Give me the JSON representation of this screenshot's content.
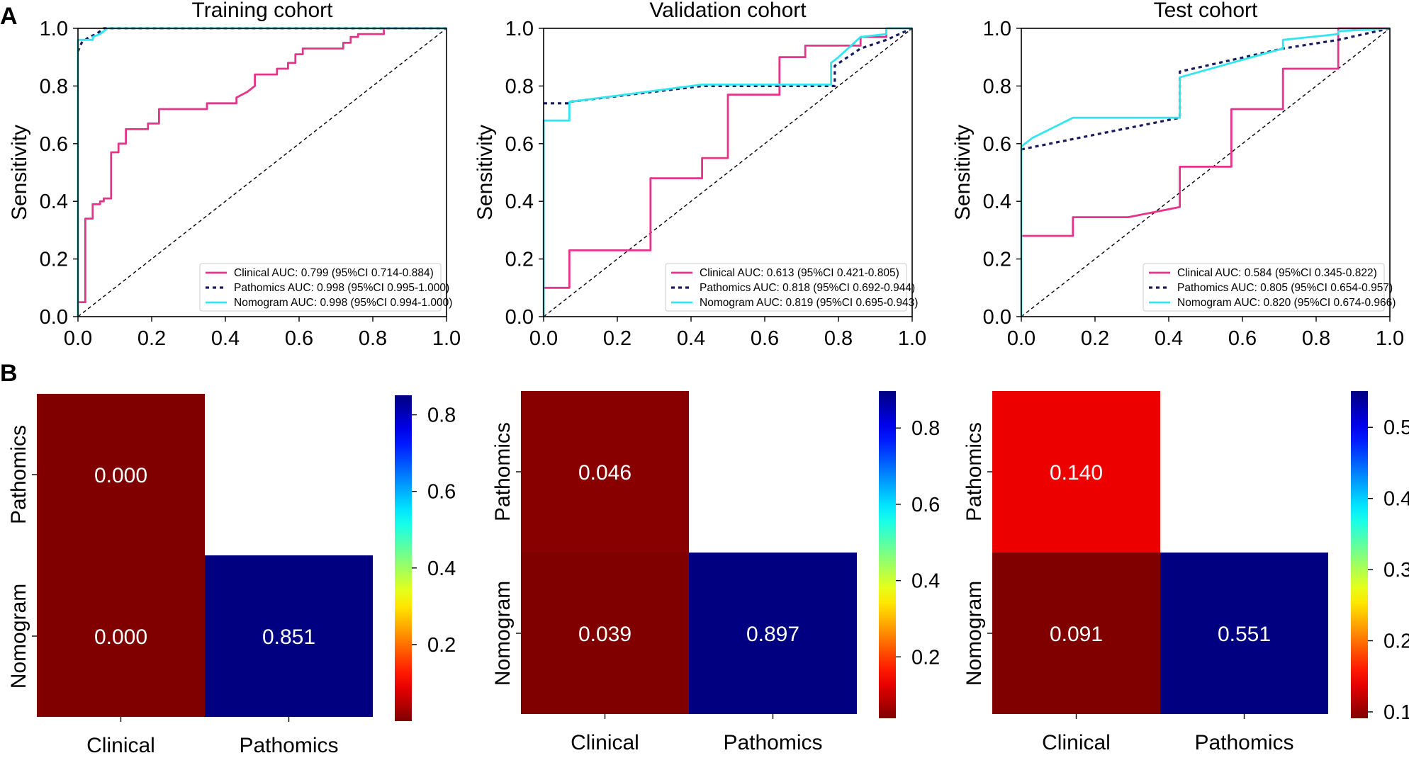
{
  "panel_labels": [
    "A",
    "B"
  ],
  "chart_data": [
    {
      "type": "line",
      "kind": "roc",
      "title": "Training cohort",
      "xlabel": "",
      "ylabel": "Sensitivity",
      "xlim": [
        0,
        1
      ],
      "ylim": [
        0,
        1
      ],
      "xticks": [
        "0.0",
        "0.2",
        "0.4",
        "0.6",
        "0.8",
        "1.0"
      ],
      "yticks": [
        "0.0",
        "0.2",
        "0.4",
        "0.6",
        "0.8",
        "1.0"
      ],
      "legend_position": "lower-right",
      "series": [
        {
          "name": "Clinical",
          "label": "Clinical AUC: 0.799 (95%CI 0.714-0.884)",
          "color": "#e5358a",
          "style": "solid",
          "points": [
            [
              0,
              0
            ],
            [
              0,
              0.05
            ],
            [
              0.02,
              0.05
            ],
            [
              0.02,
              0.34
            ],
            [
              0.04,
              0.34
            ],
            [
              0.04,
              0.39
            ],
            [
              0.06,
              0.39
            ],
            [
              0.06,
              0.4
            ],
            [
              0.07,
              0.4
            ],
            [
              0.07,
              0.41
            ],
            [
              0.09,
              0.41
            ],
            [
              0.09,
              0.57
            ],
            [
              0.11,
              0.57
            ],
            [
              0.11,
              0.6
            ],
            [
              0.13,
              0.6
            ],
            [
              0.13,
              0.65
            ],
            [
              0.19,
              0.65
            ],
            [
              0.19,
              0.67
            ],
            [
              0.22,
              0.67
            ],
            [
              0.22,
              0.72
            ],
            [
              0.35,
              0.72
            ],
            [
              0.35,
              0.74
            ],
            [
              0.43,
              0.74
            ],
            [
              0.43,
              0.76
            ],
            [
              0.46,
              0.78
            ],
            [
              0.48,
              0.8
            ],
            [
              0.48,
              0.84
            ],
            [
              0.54,
              0.84
            ],
            [
              0.54,
              0.86
            ],
            [
              0.57,
              0.86
            ],
            [
              0.57,
              0.88
            ],
            [
              0.59,
              0.88
            ],
            [
              0.59,
              0.91
            ],
            [
              0.61,
              0.91
            ],
            [
              0.61,
              0.93
            ],
            [
              0.72,
              0.93
            ],
            [
              0.72,
              0.95
            ],
            [
              0.74,
              0.95
            ],
            [
              0.74,
              0.97
            ],
            [
              0.76,
              0.97
            ],
            [
              0.76,
              0.98
            ],
            [
              0.83,
              0.98
            ],
            [
              0.83,
              1.0
            ],
            [
              1.0,
              1.0
            ]
          ]
        },
        {
          "name": "Pathomics",
          "label": "Pathomics AUC: 0.998 (95%CI 0.995-1.000)",
          "color": "#1a1a5e",
          "style": "dotted",
          "points": [
            [
              0,
              0.92
            ],
            [
              0.01,
              0.95
            ],
            [
              0.03,
              0.97
            ],
            [
              0.05,
              0.98
            ],
            [
              0.07,
              1.0
            ],
            [
              1.0,
              1.0
            ]
          ]
        },
        {
          "name": "Nomogram",
          "label": "Nomogram AUC: 0.998 (95%CI 0.994-1.000)",
          "color": "#32e6f0",
          "style": "solid",
          "points": [
            [
              0,
              0
            ],
            [
              0,
              0.96
            ],
            [
              0.04,
              0.96
            ],
            [
              0.04,
              0.97
            ],
            [
              0.06,
              0.98
            ],
            [
              0.08,
              1.0
            ],
            [
              1.0,
              1.0
            ]
          ]
        }
      ]
    },
    {
      "type": "line",
      "kind": "roc",
      "title": "Validation cohort",
      "xlabel": "",
      "ylabel": "Sensitivity",
      "xlim": [
        0,
        1
      ],
      "ylim": [
        0,
        1
      ],
      "xticks": [
        "0.0",
        "0.2",
        "0.4",
        "0.6",
        "0.8",
        "1.0"
      ],
      "yticks": [
        "0.0",
        "0.2",
        "0.4",
        "0.6",
        "0.8",
        "1.0"
      ],
      "legend_position": "lower-right",
      "series": [
        {
          "name": "Clinical",
          "label": "Clinical AUC: 0.613 (95%CI 0.421-0.805)",
          "color": "#e5358a",
          "style": "solid",
          "points": [
            [
              0,
              0.1
            ],
            [
              0.07,
              0.1
            ],
            [
              0.07,
              0.23
            ],
            [
              0.29,
              0.23
            ],
            [
              0.29,
              0.48
            ],
            [
              0.43,
              0.48
            ],
            [
              0.43,
              0.55
            ],
            [
              0.5,
              0.55
            ],
            [
              0.5,
              0.77
            ],
            [
              0.64,
              0.77
            ],
            [
              0.64,
              0.9
            ],
            [
              0.71,
              0.9
            ],
            [
              0.71,
              0.94
            ],
            [
              0.86,
              0.94
            ],
            [
              0.86,
              0.97
            ],
            [
              0.93,
              0.97
            ],
            [
              0.93,
              1.0
            ],
            [
              1.0,
              1.0
            ]
          ]
        },
        {
          "name": "Pathomics",
          "label": "Pathomics AUC: 0.818 (95%CI 0.692-0.944)",
          "color": "#1a1a5e",
          "style": "dotted",
          "points": [
            [
              0,
              0.74
            ],
            [
              0.07,
              0.74
            ],
            [
              0.07,
              0.745
            ],
            [
              0.43,
              0.8
            ],
            [
              0.79,
              0.8
            ],
            [
              0.79,
              0.87
            ],
            [
              0.86,
              0.93
            ],
            [
              0.93,
              0.96
            ],
            [
              1.0,
              1.0
            ]
          ]
        },
        {
          "name": "Nomogram",
          "label": "Nomogram AUC: 0.819 (95%CI 0.695-0.943)",
          "color": "#32e6f0",
          "style": "solid",
          "points": [
            [
              0,
              0
            ],
            [
              0,
              0.68
            ],
            [
              0.07,
              0.68
            ],
            [
              0.07,
              0.745
            ],
            [
              0.43,
              0.805
            ],
            [
              0.78,
              0.805
            ],
            [
              0.78,
              0.88
            ],
            [
              0.8,
              0.9
            ],
            [
              0.86,
              0.97
            ],
            [
              0.93,
              0.98
            ],
            [
              0.93,
              1.0
            ],
            [
              1.0,
              1.0
            ]
          ]
        }
      ]
    },
    {
      "type": "line",
      "kind": "roc",
      "title": "Test cohort",
      "xlabel": "",
      "ylabel": "Sensitivity",
      "xlim": [
        0,
        1
      ],
      "ylim": [
        0,
        1
      ],
      "xticks": [
        "0.0",
        "0.2",
        "0.4",
        "0.6",
        "0.8",
        "1.0"
      ],
      "yticks": [
        "0.0",
        "0.2",
        "0.4",
        "0.6",
        "0.8",
        "1.0"
      ],
      "legend_position": "lower-right",
      "series": [
        {
          "name": "Clinical",
          "label": "Clinical AUC: 0.584 (95%CI 0.345-0.822)",
          "color": "#e5358a",
          "style": "solid",
          "points": [
            [
              0,
              0.28
            ],
            [
              0.14,
              0.28
            ],
            [
              0.14,
              0.345
            ],
            [
              0.29,
              0.345
            ],
            [
              0.43,
              0.38
            ],
            [
              0.43,
              0.52
            ],
            [
              0.57,
              0.52
            ],
            [
              0.57,
              0.72
            ],
            [
              0.71,
              0.72
            ],
            [
              0.71,
              0.86
            ],
            [
              0.86,
              0.86
            ],
            [
              0.86,
              1.0
            ],
            [
              1.0,
              1.0
            ]
          ]
        },
        {
          "name": "Pathomics",
          "label": "Pathomics AUC: 0.805 (95%CI 0.654-0.957)",
          "color": "#1a1a5e",
          "style": "dotted",
          "points": [
            [
              0,
              0.58
            ],
            [
              0.43,
              0.69
            ],
            [
              0.43,
              0.85
            ],
            [
              0.71,
              0.93
            ],
            [
              0.86,
              0.96
            ],
            [
              1.0,
              1.0
            ]
          ]
        },
        {
          "name": "Nomogram",
          "label": "Nomogram AUC: 0.820 (95%CI 0.674-0.966)",
          "color": "#32e6f0",
          "style": "solid",
          "points": [
            [
              0,
              0
            ],
            [
              0,
              0.59
            ],
            [
              0.03,
              0.62
            ],
            [
              0.14,
              0.69
            ],
            [
              0.43,
              0.69
            ],
            [
              0.43,
              0.83
            ],
            [
              0.71,
              0.93
            ],
            [
              0.71,
              0.96
            ],
            [
              0.86,
              0.98
            ],
            [
              0.86,
              0.99
            ],
            [
              1.0,
              1.0
            ]
          ]
        }
      ]
    },
    {
      "type": "heatmap",
      "title": "",
      "xlabel": "",
      "ylabel": "",
      "x_categories": [
        "Clinical",
        "Pathomics"
      ],
      "y_categories": [
        "Pathomics",
        "Nomogram"
      ],
      "cells": [
        {
          "row": "Pathomics",
          "col": "Clinical",
          "value": 0.0,
          "label": "0.000"
        },
        {
          "row": "Nomogram",
          "col": "Clinical",
          "value": 0.0,
          "label": "0.000"
        },
        {
          "row": "Nomogram",
          "col": "Pathomics",
          "value": 0.851,
          "label": "0.851"
        }
      ],
      "colorbar": {
        "vmin": 0.0,
        "vmax": 0.851,
        "ticks": [
          0.2,
          0.4,
          0.6,
          0.8
        ],
        "tick_labels": [
          "0.2",
          "0.4",
          "0.6",
          "0.8"
        ],
        "colormap": "jet_r"
      }
    },
    {
      "type": "heatmap",
      "title": "",
      "xlabel": "",
      "ylabel": "",
      "x_categories": [
        "Clinical",
        "Pathomics"
      ],
      "y_categories": [
        "Pathomics",
        "Nomogram"
      ],
      "cells": [
        {
          "row": "Pathomics",
          "col": "Clinical",
          "value": 0.046,
          "label": "0.046"
        },
        {
          "row": "Nomogram",
          "col": "Clinical",
          "value": 0.039,
          "label": "0.039"
        },
        {
          "row": "Nomogram",
          "col": "Pathomics",
          "value": 0.897,
          "label": "0.897"
        }
      ],
      "colorbar": {
        "vmin": 0.039,
        "vmax": 0.897,
        "ticks": [
          0.2,
          0.4,
          0.6,
          0.8
        ],
        "tick_labels": [
          "0.2",
          "0.4",
          "0.6",
          "0.8"
        ],
        "colormap": "jet_r"
      }
    },
    {
      "type": "heatmap",
      "title": "",
      "xlabel": "",
      "ylabel": "",
      "x_categories": [
        "Clinical",
        "Pathomics"
      ],
      "y_categories": [
        "Pathomics",
        "Nomogram"
      ],
      "cells": [
        {
          "row": "Pathomics",
          "col": "Clinical",
          "value": 0.14,
          "label": "0.140"
        },
        {
          "row": "Nomogram",
          "col": "Clinical",
          "value": 0.091,
          "label": "0.091"
        },
        {
          "row": "Nomogram",
          "col": "Pathomics",
          "value": 0.551,
          "label": "0.551"
        }
      ],
      "colorbar": {
        "vmin": 0.091,
        "vmax": 0.551,
        "ticks": [
          0.1,
          0.2,
          0.3,
          0.4,
          0.5
        ],
        "tick_labels": [
          "0.1",
          "0.2",
          "0.3",
          "0.4",
          "0.5"
        ],
        "colormap": "jet_r"
      }
    }
  ]
}
